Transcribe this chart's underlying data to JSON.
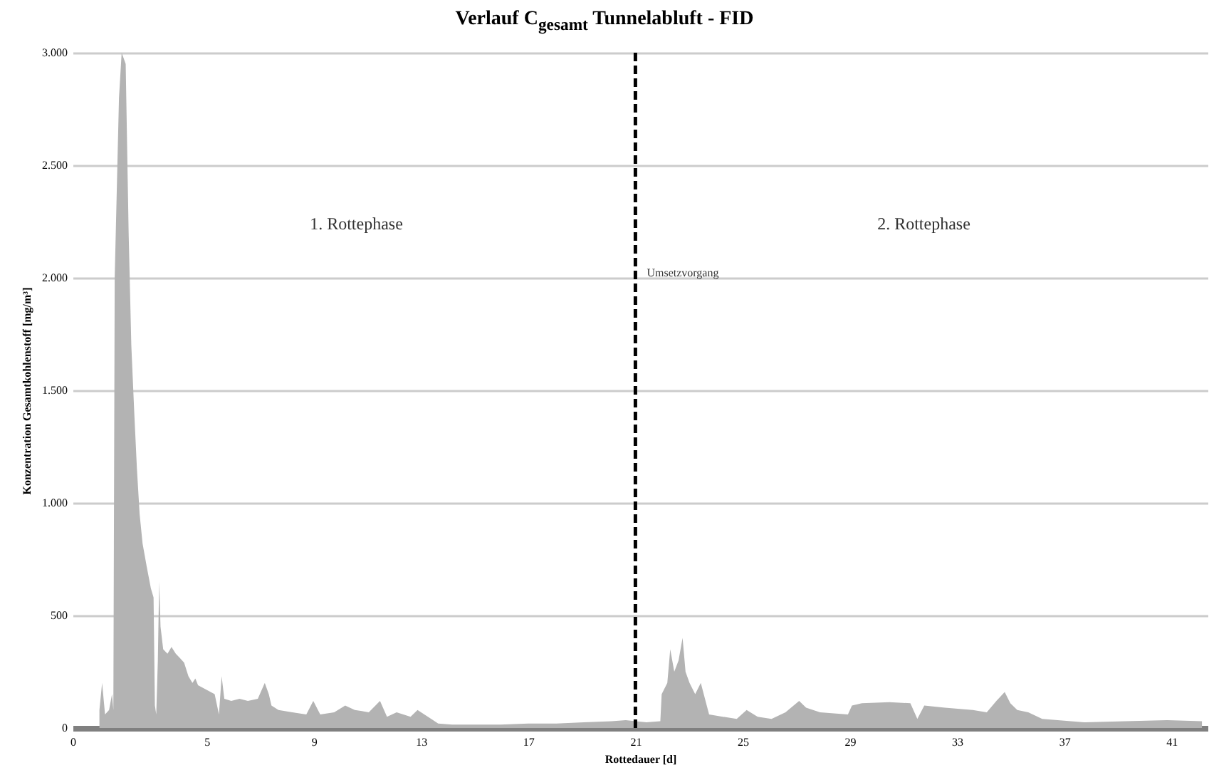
{
  "chart_data": {
    "type": "area",
    "title": "Verlauf C$_{gesamt}$ Tunnelabluft -  FID",
    "xlabel": "Rottedauer [d]",
    "ylabel": "Konzentration Gesamtkohlenstoff [mg/m³]",
    "annotations": [
      "1. Rottephase",
      "2. Rottephase"
    ],
    "x": [
      1.0,
      1.1,
      1.21,
      1.36,
      1.47,
      1.52,
      1.57,
      1.73,
      1.83,
      1.98,
      2.09,
      2.19,
      2.3,
      2.4,
      2.5,
      2.61,
      2.76,
      2.92,
      3.02,
      3.07,
      3.12,
      3.18,
      3.23,
      3.28,
      3.38,
      3.54,
      3.69,
      3.85,
      4.01,
      4.16,
      4.32,
      4.47,
      4.58,
      4.68,
      4.83,
      4.99,
      5.3,
      5.46,
      5.56,
      5.66,
      5.92,
      6.23,
      6.54,
      6.91,
      7.17,
      7.32,
      7.42,
      7.68,
      8.2,
      8.72,
      8.98,
      9.24,
      9.76,
      10.17,
      10.53,
      11.05,
      11.47,
      11.73,
      12.09,
      12.61,
      12.87,
      13.38,
      13.64,
      14.16,
      14.94,
      15.97,
      17.01,
      18.05,
      19.08,
      20.12,
      20.64,
      21.0,
      21.41,
      21.93,
      21.98,
      22.19,
      22.3,
      22.45,
      22.61,
      22.76,
      22.87,
      23.02,
      23.23,
      23.44,
      23.75,
      24.26,
      24.78,
      25.15,
      25.56,
      26.08,
      26.6,
      27.11,
      27.37,
      27.89,
      28.93,
      29.08,
      29.45,
      30.48,
      31.26,
      31.52,
      31.78,
      32.55,
      33.59,
      34.11,
      34.47,
      34.78,
      34.99,
      35.25,
      35.66,
      36.18,
      37.74,
      39.29,
      40.84,
      42.14
    ],
    "series": [
      {
        "color": "#b3b3b3",
        "values": [
          80,
          200,
          60,
          80,
          150,
          80,
          2000,
          2800,
          3000,
          2950,
          2200,
          1700,
          1400,
          1150,
          950,
          820,
          720,
          620,
          580,
          100,
          60,
          300,
          650,
          450,
          350,
          330,
          360,
          330,
          310,
          290,
          230,
          200,
          220,
          190,
          180,
          170,
          150,
          60,
          230,
          130,
          120,
          130,
          120,
          130,
          200,
          150,
          100,
          80,
          70,
          60,
          120,
          60,
          70,
          100,
          80,
          70,
          120,
          50,
          70,
          50,
          80,
          40,
          20,
          15,
          15,
          15,
          20,
          20,
          25,
          30,
          35,
          30,
          25,
          30,
          150,
          200,
          350,
          250,
          300,
          400,
          250,
          200,
          150,
          200,
          60,
          50,
          40,
          80,
          50,
          40,
          70,
          120,
          90,
          70,
          60,
          100,
          110,
          115,
          110,
          40,
          100,
          90,
          80,
          70,
          120,
          160,
          110,
          80,
          70,
          40,
          25,
          30,
          35,
          30
        ]
      }
    ],
    "xlim": [
      0,
      42.35
    ],
    "xticks": [
      0,
      5,
      9,
      13,
      17,
      21,
      25,
      29,
      33,
      37,
      41
    ],
    "ylim": [
      0,
      3000
    ],
    "yticks": [
      0,
      500,
      {
        "value": 1000,
        "label": "1.000"
      },
      {
        "value": 1500,
        "label": "1.500"
      },
      {
        "value": 2000,
        "label": "2.000"
      },
      {
        "value": 2500,
        "label": "2.500"
      },
      {
        "value": 3000,
        "label": "3.000"
      }
    ],
    "grid": "y",
    "ref_lines": [
      {
        "axis": "x",
        "value": 21,
        "label": "Umsetzvorgang",
        "color": "#000000",
        "line_style": "dashed"
      }
    ]
  }
}
